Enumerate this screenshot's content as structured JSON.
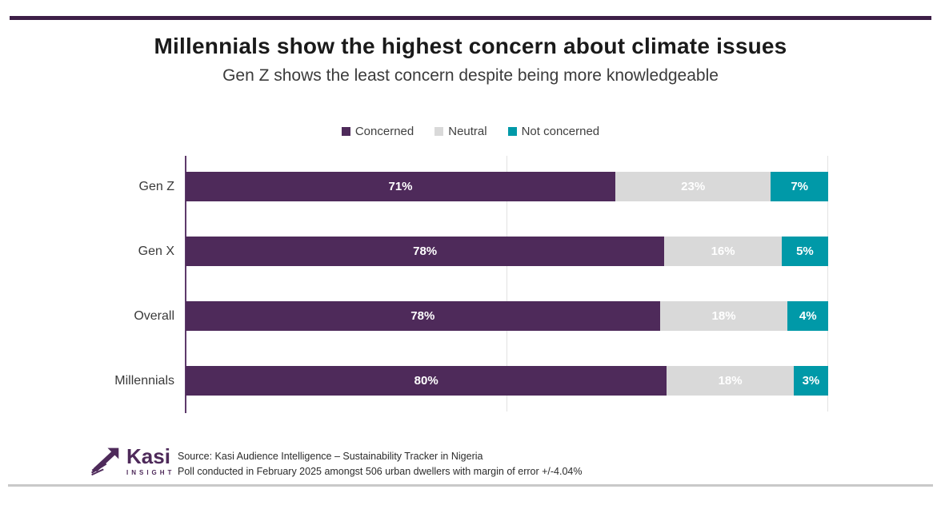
{
  "header": {
    "title": "Millennials show the highest concern about climate issues",
    "subtitle": "Gen Z shows the least concern despite being more knowledgeable"
  },
  "chart_data": {
    "type": "bar",
    "orientation": "horizontal",
    "stacked": true,
    "categories": [
      "Gen Z",
      "Gen X",
      "Overall",
      "Millennials"
    ],
    "series": [
      {
        "name": "Concerned",
        "color": "#4E2A5A",
        "values": [
          71,
          78,
          78,
          80
        ]
      },
      {
        "name": "Neutral",
        "color": "#D9D9D9",
        "values": [
          23,
          16,
          18,
          18
        ]
      },
      {
        "name": "Not concerned",
        "color": "#0099A8",
        "values": [
          7,
          5,
          4,
          3
        ]
      }
    ],
    "value_suffix": "%",
    "xlim": [
      0,
      100
    ],
    "gridlines_percent": [
      0,
      50,
      100
    ],
    "legend_position": "top-center",
    "bar_label_color": "#FFFFFF",
    "grid": true
  },
  "footer": {
    "logo": {
      "brand": "Kasi",
      "sub_brand": "INSIGHT",
      "icon": "kasi-arrow-logo"
    },
    "source_line1": "Source: Kasi Audience Intelligence – Sustainability Tracker in Nigeria",
    "source_line2": "Poll conducted in February 2025 amongst 506 urban dwellers with margin of error +/-4.04%"
  },
  "colors": {
    "accent_purple": "#4E2A5A",
    "neutral_gray": "#D9D9D9",
    "teal": "#0099A8",
    "top_rule": "#3D1F47",
    "bottom_rule": "#C9C9C9",
    "axis_line": "#5E3A6B",
    "gridline": "#E2E2E2"
  }
}
